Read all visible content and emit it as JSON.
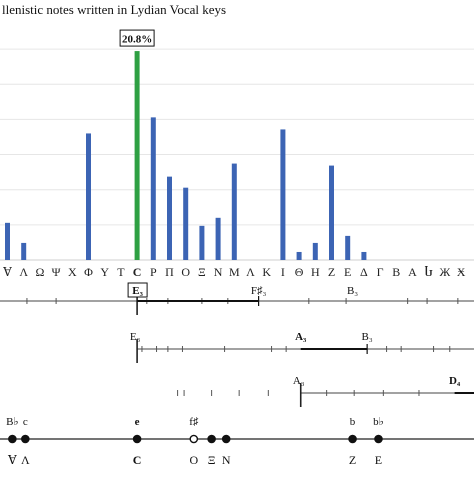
{
  "chart_data": {
    "type": "bar",
    "title": "llenistic notes written in Lydian Vocal keys",
    "categories": [
      "Ɐ",
      "Ʌ",
      "Ω",
      "Ψ",
      "X",
      "Φ",
      "Y",
      "T",
      "C",
      "P",
      "Π",
      "O",
      "Ξ",
      "N",
      "M",
      "Λ",
      "K",
      "I",
      "Θ",
      "H",
      "Z",
      "E",
      "Δ",
      "Γ",
      "B",
      "A",
      "Ⴑ",
      "Ж",
      "Ӿ"
    ],
    "values": [
      3.7,
      1.7,
      0,
      0,
      0,
      12.6,
      0,
      0,
      20.8,
      14.2,
      8.3,
      7.2,
      3.4,
      4.2,
      9.6,
      0,
      0,
      13.0,
      0.8,
      1.7,
      9.4,
      2.4,
      0.8,
      0,
      0,
      0,
      0,
      0,
      0
    ],
    "highlight": {
      "category": "C",
      "label": "20.8%",
      "color": "#2ea043"
    },
    "bar_color": "#3c64b4",
    "ylim": [
      0,
      22.5
    ],
    "grid": true,
    "xlabel": "",
    "ylabel": ""
  },
  "scales": [
    {
      "start_label": "E₃",
      "boxed_label": "E₃",
      "labels": [
        {
          "text": "F♯₃",
          "value": 7.5
        },
        {
          "text": "B₃",
          "value": 13.3
        }
      ],
      "segment": [
        0.0,
        7.5
      ],
      "ticks": [
        -8.8,
        -6.8,
        -5.0,
        0.6,
        1.9,
        4.0,
        5.6,
        10.6,
        12.9,
        16.7,
        17.9,
        19.8,
        21.2,
        23.5,
        24.6
      ]
    },
    {
      "start_label": "E₃",
      "labels": [
        {
          "text": "A₃",
          "value": 10.1
        },
        {
          "text": "B₃",
          "value": 14.2
        }
      ],
      "segment": [
        10.1,
        14.2
      ],
      "ticks": [
        0.3,
        1.2,
        1.9,
        2.8,
        5.4,
        8.3,
        9.2,
        15.4,
        16.3,
        18.3,
        19.3
      ]
    },
    {
      "start_label": "A₃",
      "labels": [
        {
          "text": "D₄",
          "value": 19.6
        }
      ],
      "segment": [
        19.6,
        24.0
      ],
      "ticks": [
        2.5,
        2.9,
        4.6,
        6.3,
        8.1,
        11.7,
        13.4,
        15.2,
        17.4,
        22.5
      ]
    }
  ],
  "bottom_scale": {
    "points": [
      {
        "top": "B♭",
        "bottom": "Ɐ",
        "value": -7.7
      },
      {
        "top": "c",
        "bottom": "Ʌ",
        "value": -6.9
      },
      {
        "top": "e",
        "bottom": "C",
        "value": 0.0
      },
      {
        "top": "f♯",
        "bottom": "O",
        "value": 3.5
      },
      {
        "top": "",
        "bottom": "Ξ",
        "value": 4.6
      },
      {
        "top": "",
        "bottom": "N",
        "value": 5.5
      },
      {
        "top": "b",
        "bottom": "Z",
        "value": 13.3
      },
      {
        "top": "b♭",
        "bottom": "E",
        "value": 14.9
      }
    ]
  }
}
